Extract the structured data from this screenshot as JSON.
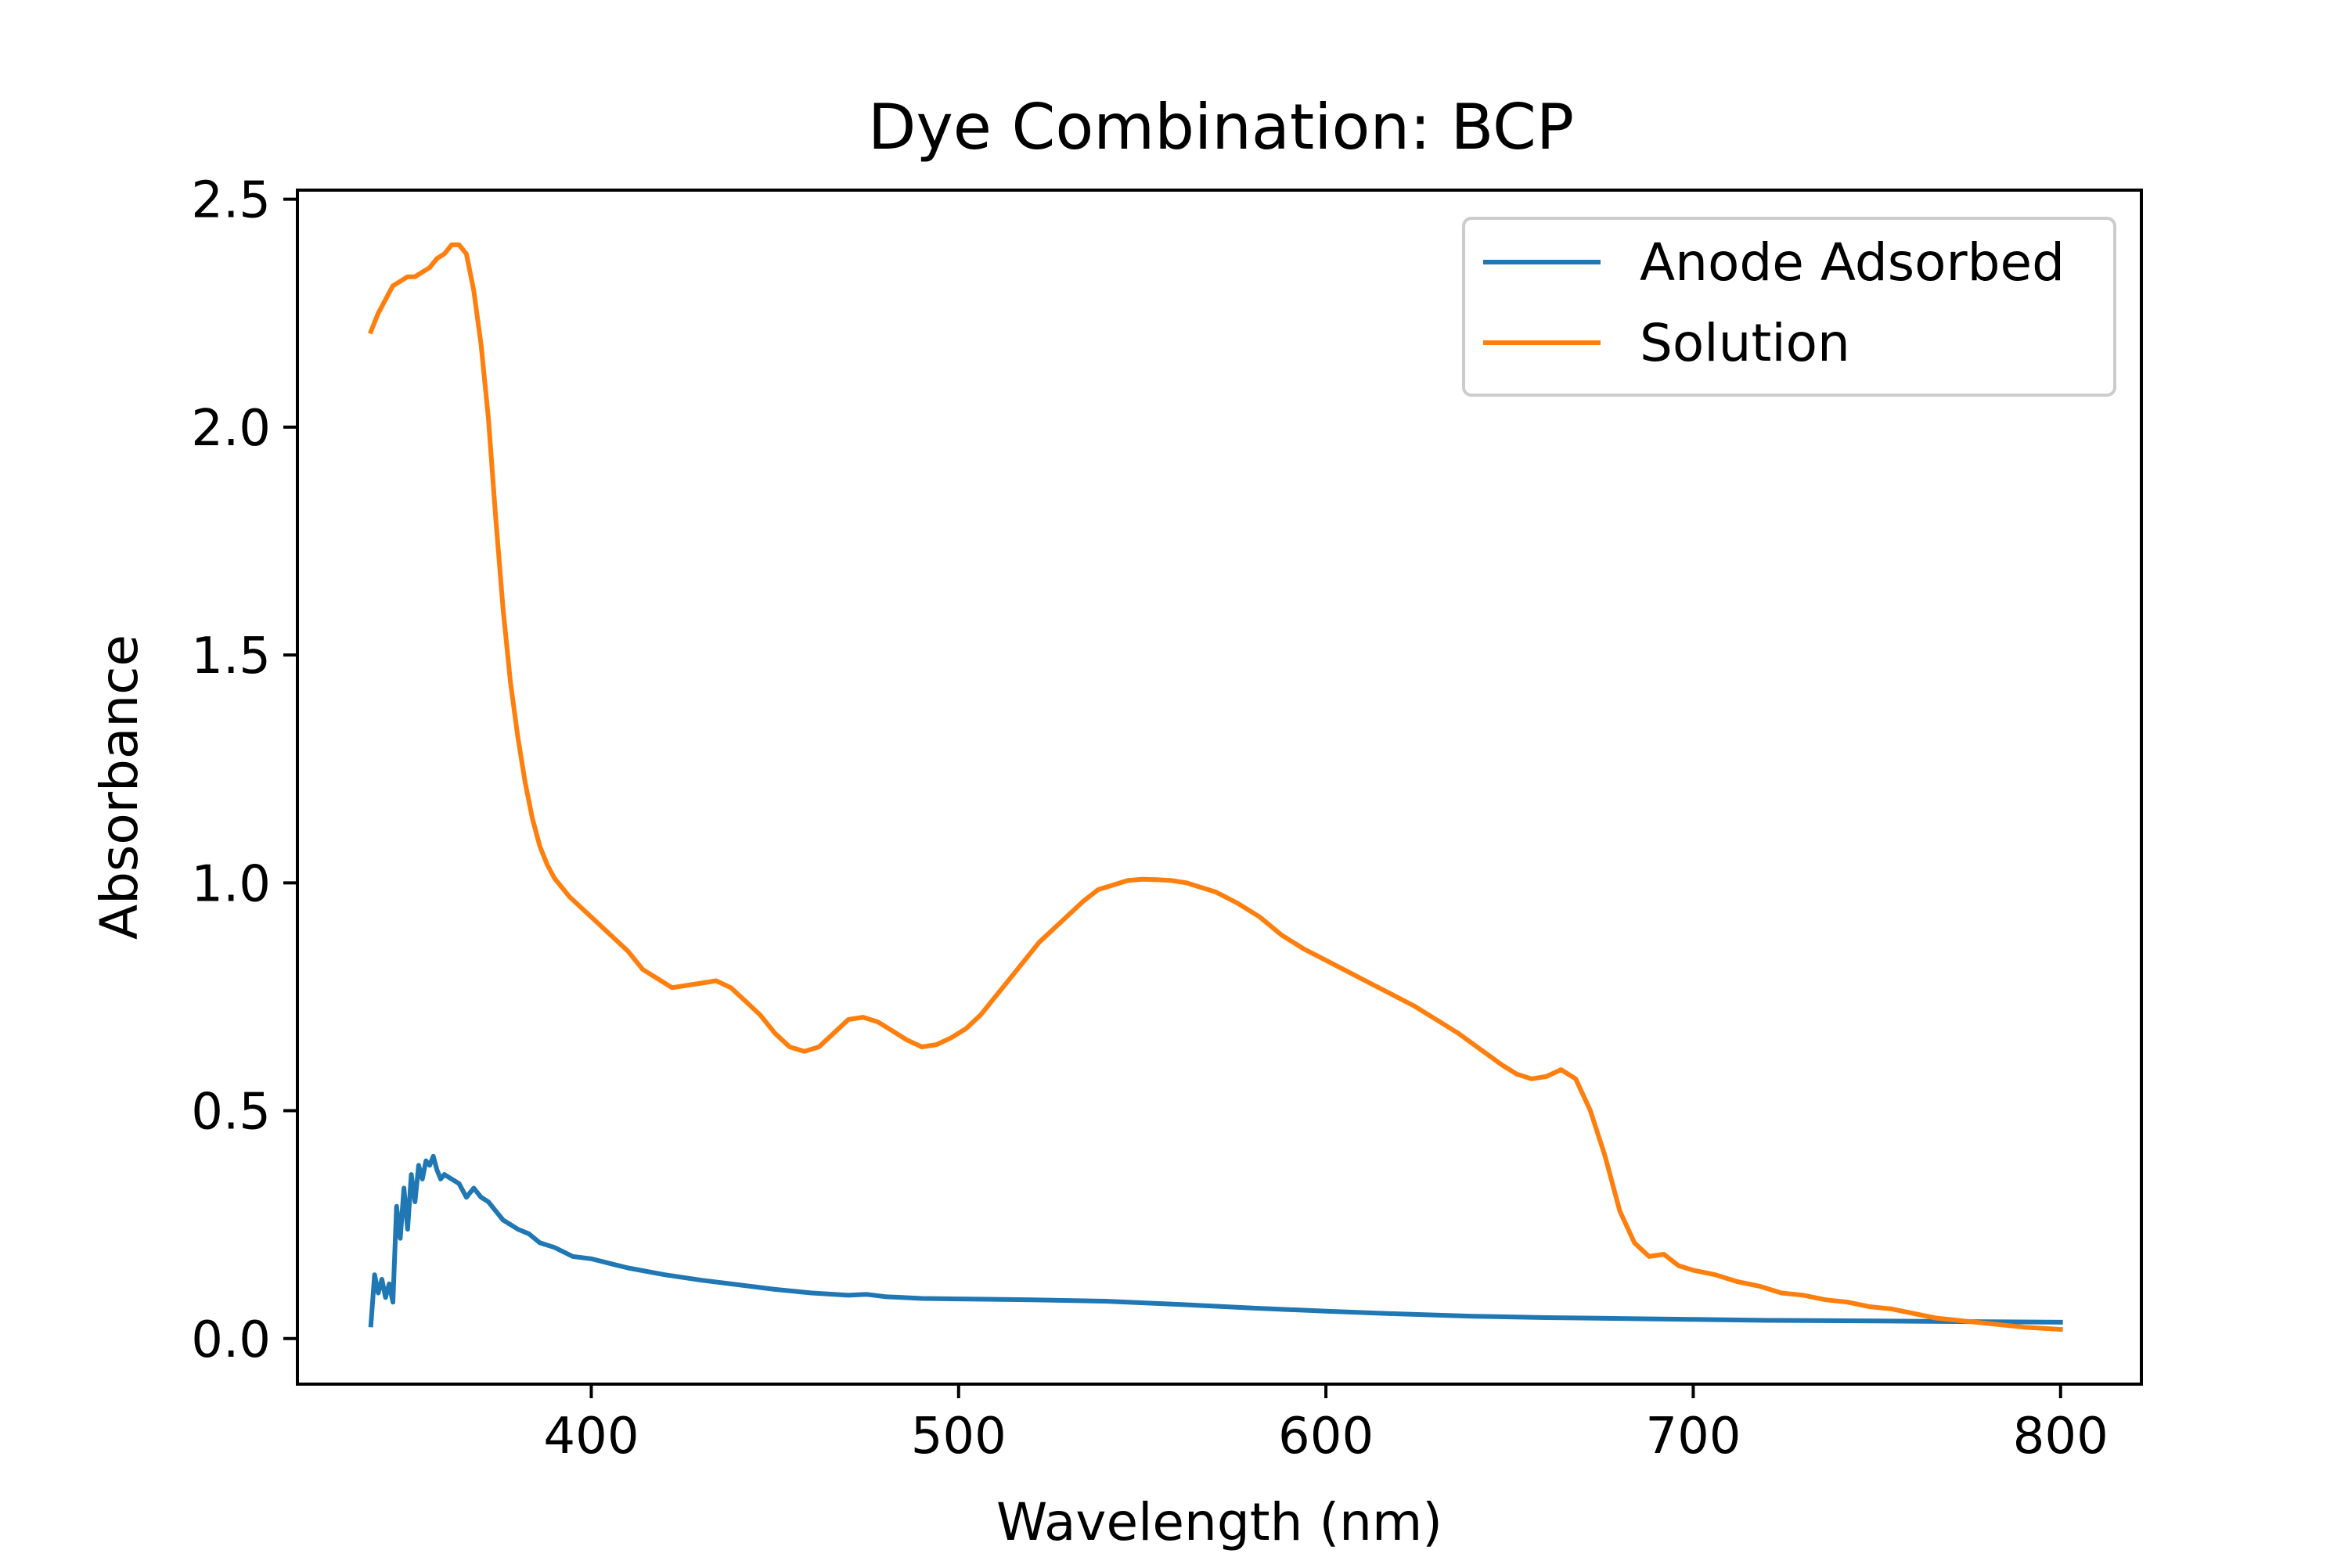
{
  "chart_data": {
    "type": "line",
    "title": "Dye Combination: BCP",
    "xlabel": "Wavelength (nm)",
    "ylabel": "Absorbance",
    "xlim": [
      320,
      822
    ],
    "ylim": [
      -0.1,
      2.52
    ],
    "x_ticks": [
      400,
      500,
      600,
      700,
      800
    ],
    "x_tick_labels": [
      "400",
      "500",
      "600",
      "700",
      "800"
    ],
    "y_ticks": [
      0.0,
      0.5,
      1.0,
      1.5,
      2.0,
      2.5
    ],
    "y_tick_labels": [
      "0.0",
      "0.5",
      "1.0",
      "1.5",
      "2.0",
      "2.5"
    ],
    "grid": false,
    "legend_position": "top-right",
    "series": [
      {
        "name": "Anode Adsorbed",
        "color": "#1f77b4",
        "x": [
          340,
          341,
          342,
          343,
          344,
          345,
          346,
          347,
          348,
          349,
          350,
          351,
          352,
          353,
          354,
          355,
          356,
          357,
          358,
          359,
          360,
          362,
          364,
          366,
          368,
          370,
          372,
          374,
          376,
          378,
          380,
          383,
          386,
          390,
          395,
          400,
          405,
          410,
          420,
          430,
          440,
          450,
          460,
          470,
          475,
          480,
          490,
          500,
          520,
          540,
          560,
          580,
          600,
          620,
          640,
          660,
          680,
          700,
          720,
          740,
          760,
          780,
          800
        ],
        "y": [
          0.03,
          0.14,
          0.1,
          0.13,
          0.09,
          0.12,
          0.08,
          0.29,
          0.22,
          0.33,
          0.24,
          0.36,
          0.3,
          0.38,
          0.35,
          0.39,
          0.38,
          0.4,
          0.37,
          0.35,
          0.36,
          0.35,
          0.34,
          0.31,
          0.33,
          0.31,
          0.3,
          0.28,
          0.26,
          0.25,
          0.24,
          0.23,
          0.21,
          0.2,
          0.18,
          0.175,
          0.165,
          0.155,
          0.14,
          0.128,
          0.118,
          0.108,
          0.1,
          0.095,
          0.097,
          0.092,
          0.088,
          0.087,
          0.085,
          0.082,
          0.075,
          0.067,
          0.06,
          0.054,
          0.049,
          0.046,
          0.044,
          0.042,
          0.04,
          0.039,
          0.038,
          0.037,
          0.036
        ]
      },
      {
        "name": "Solution",
        "color": "#ff7f0e",
        "x": [
          340,
          342,
          344,
          346,
          348,
          350,
          352,
          354,
          356,
          358,
          360,
          362,
          364,
          366,
          368,
          370,
          372,
          374,
          376,
          378,
          380,
          382,
          384,
          386,
          388,
          390,
          394,
          398,
          402,
          406,
          410,
          414,
          418,
          422,
          426,
          430,
          434,
          438,
          442,
          446,
          450,
          454,
          458,
          462,
          466,
          470,
          474,
          478,
          482,
          486,
          490,
          494,
          498,
          502,
          506,
          510,
          514,
          518,
          522,
          526,
          530,
          534,
          538,
          542,
          546,
          550,
          554,
          558,
          562,
          566,
          570,
          576,
          582,
          588,
          594,
          600,
          606,
          612,
          618,
          624,
          630,
          636,
          642,
          648,
          652,
          656,
          660,
          664,
          668,
          672,
          676,
          680,
          684,
          688,
          692,
          696,
          700,
          706,
          712,
          718,
          724,
          730,
          736,
          742,
          748,
          754,
          760,
          766,
          772,
          778,
          784,
          790,
          796,
          800
        ],
        "y": [
          2.21,
          2.25,
          2.28,
          2.31,
          2.32,
          2.33,
          2.33,
          2.34,
          2.35,
          2.37,
          2.38,
          2.4,
          2.4,
          2.38,
          2.3,
          2.18,
          2.02,
          1.8,
          1.6,
          1.44,
          1.32,
          1.22,
          1.14,
          1.08,
          1.04,
          1.01,
          0.97,
          0.94,
          0.91,
          0.88,
          0.85,
          0.81,
          0.79,
          0.77,
          0.775,
          0.78,
          0.785,
          0.77,
          0.74,
          0.71,
          0.67,
          0.64,
          0.63,
          0.64,
          0.67,
          0.7,
          0.705,
          0.695,
          0.675,
          0.655,
          0.64,
          0.645,
          0.66,
          0.68,
          0.71,
          0.75,
          0.79,
          0.83,
          0.87,
          0.9,
          0.93,
          0.96,
          0.985,
          0.995,
          1.005,
          1.008,
          1.007,
          1.005,
          1.0,
          0.99,
          0.98,
          0.955,
          0.925,
          0.885,
          0.855,
          0.83,
          0.805,
          0.78,
          0.755,
          0.73,
          0.7,
          0.67,
          0.635,
          0.6,
          0.58,
          0.57,
          0.575,
          0.59,
          0.57,
          0.5,
          0.4,
          0.28,
          0.21,
          0.18,
          0.185,
          0.16,
          0.15,
          0.14,
          0.125,
          0.115,
          0.1,
          0.095,
          0.085,
          0.08,
          0.07,
          0.065,
          0.055,
          0.045,
          0.04,
          0.035,
          0.03,
          0.025,
          0.022,
          0.02
        ]
      }
    ]
  }
}
